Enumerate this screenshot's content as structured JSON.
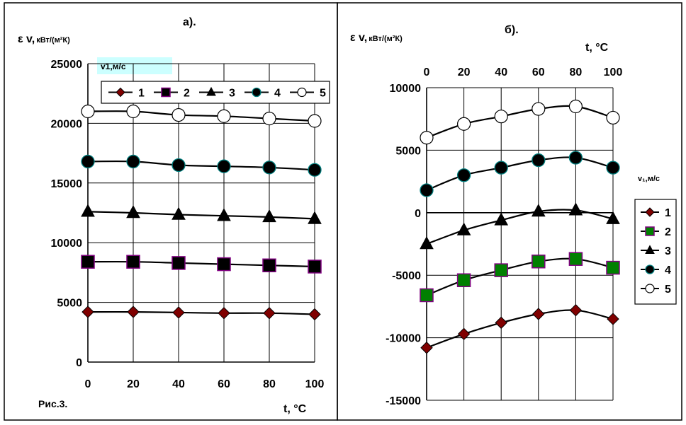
{
  "figure_caption": "Рис.3.",
  "chart_data": [
    {
      "type": "line",
      "panel_label": "а).",
      "ylabel_main": "ε v,",
      "ylabel_unit": "кВт/(м²К)",
      "xlabel": "t, °C",
      "legend_title": "v1,м/с",
      "legend_title_bg": "#ccffff",
      "x": [
        0,
        20,
        40,
        60,
        80,
        100
      ],
      "xticks": [
        "0",
        "20",
        "40",
        "60",
        "80",
        "100"
      ],
      "ylim": [
        0,
        25000
      ],
      "yticks": [
        "0",
        "5000",
        "10000",
        "15000",
        "20000",
        "25000"
      ],
      "grid": true,
      "legend_position": "top-right",
      "series": [
        {
          "name": "1",
          "marker": "diamond",
          "color": "#800000",
          "values": [
            4200,
            4200,
            4150,
            4100,
            4100,
            4000
          ]
        },
        {
          "name": "2",
          "marker": "square",
          "color": "#000000",
          "stroke": "#800080",
          "values": [
            8400,
            8400,
            8300,
            8200,
            8100,
            8000
          ]
        },
        {
          "name": "3",
          "marker": "triangle",
          "color": "#000000",
          "values": [
            12600,
            12500,
            12350,
            12250,
            12150,
            12000
          ]
        },
        {
          "name": "4",
          "marker": "circle",
          "color": "#000000",
          "stroke": "#008080",
          "values": [
            16800,
            16800,
            16500,
            16400,
            16300,
            16100
          ]
        },
        {
          "name": "5",
          "marker": "open-circle",
          "color": "#ffffff",
          "values": [
            21000,
            21000,
            20700,
            20600,
            20400,
            20200
          ]
        }
      ]
    },
    {
      "type": "line",
      "panel_label": "б).",
      "ylabel_main": "ε v,",
      "ylabel_unit": "кВт/(м²К)",
      "xlabel": "t, °C",
      "legend_title": "v₁,м/с",
      "x": [
        0,
        20,
        40,
        60,
        80,
        100
      ],
      "xticks": [
        "0",
        "20",
        "40",
        "60",
        "80",
        "100"
      ],
      "ylim": [
        -15000,
        10000
      ],
      "yticks": [
        "-15000",
        "-10000",
        "-5000",
        "0",
        "5000",
        "10000"
      ],
      "grid": true,
      "legend_position": "right",
      "series": [
        {
          "name": "1",
          "marker": "diamond",
          "color": "#800000",
          "values": [
            -10800,
            -9700,
            -8800,
            -8100,
            -7800,
            -8500
          ]
        },
        {
          "name": "2",
          "marker": "square",
          "color": "#008000",
          "stroke": "#800080",
          "values": [
            -6600,
            -5400,
            -4600,
            -3900,
            -3700,
            -4400
          ]
        },
        {
          "name": "3",
          "marker": "triangle",
          "color": "#000000",
          "values": [
            -2500,
            -1400,
            -600,
            100,
            200,
            -500
          ]
        },
        {
          "name": "4",
          "marker": "circle",
          "color": "#000000",
          "stroke": "#008080",
          "values": [
            1800,
            3000,
            3600,
            4200,
            4400,
            3600
          ]
        },
        {
          "name": "5",
          "marker": "open-circle",
          "color": "#ffffff",
          "values": [
            6000,
            7100,
            7700,
            8300,
            8500,
            7600
          ]
        }
      ]
    }
  ]
}
